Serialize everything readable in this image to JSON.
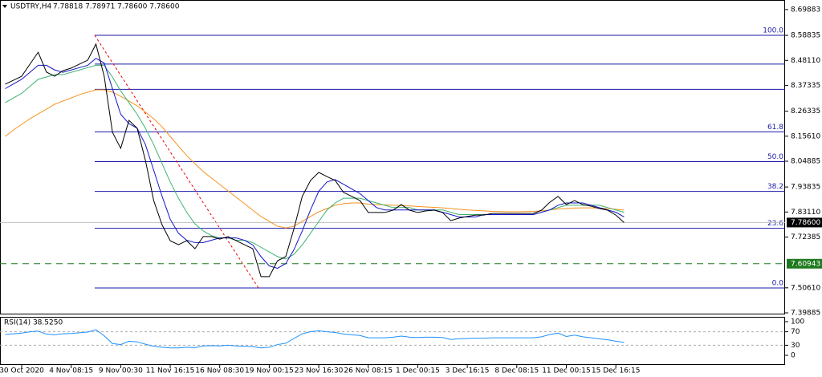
{
  "chart_data": [
    {
      "type": "line",
      "title": "USDTRY,H4",
      "ohlc": "7.78818 7.78971 7.78600 7.78600",
      "categories": [
        null,
        null,
        "30 Oct 2020",
        null,
        null,
        null,
        null,
        null,
        "4 Nov 08:15",
        null,
        null,
        null,
        null,
        null,
        "9 Nov 00:30",
        null,
        null,
        null,
        null,
        null,
        "11 Nov 16:15",
        null,
        null,
        null,
        null,
        null,
        "16 Nov 08:30",
        null,
        null,
        null,
        null,
        null,
        "19 Nov 00:15",
        null,
        null,
        null,
        null,
        null,
        "23 Nov 16:30",
        null,
        null,
        null,
        null,
        null,
        "26 Nov 08:15",
        null,
        null,
        null,
        null,
        null,
        "1 Dec 00:15",
        null,
        null,
        null,
        null,
        null,
        "3 Dec 16:15",
        null,
        null,
        null,
        null,
        null,
        "8 Dec 08:15",
        null,
        null,
        null,
        null,
        null,
        "11 Dec 00:15",
        null,
        null,
        null,
        null,
        null,
        "15 Dec 16:15",
        null
      ],
      "series": [
        {
          "color": "#000000",
          "values": [
            8.379,
            8.396,
            8.413,
            8.465,
            8.516,
            8.431,
            8.413,
            8.437,
            8.448,
            8.465,
            8.482,
            8.551,
            8.413,
            8.173,
            8.104,
            8.224,
            8.19,
            8.052,
            7.88,
            7.777,
            7.708,
            7.691,
            7.708,
            7.674,
            7.726,
            7.726,
            7.715,
            7.726,
            7.708,
            7.691,
            7.674,
            7.554,
            7.554,
            7.622,
            7.64,
            7.76,
            7.898,
            7.966,
            8.001,
            7.983,
            7.966,
            7.915,
            7.898,
            7.88,
            7.829,
            7.829,
            7.829,
            7.839,
            7.863,
            7.839,
            7.829,
            7.836,
            7.839,
            7.829,
            7.794,
            7.805,
            7.812,
            7.818,
            7.818,
            7.825,
            7.825,
            7.825,
            7.825,
            7.825,
            7.825,
            7.839,
            7.873,
            7.898,
            7.863,
            7.88,
            7.863,
            7.856,
            7.846,
            7.839,
            7.818,
            7.786
          ]
        },
        {
          "color": "#1515c8",
          "values": [
            8.36,
            8.38,
            8.4,
            8.43,
            8.46,
            8.46,
            8.44,
            8.43,
            8.44,
            8.45,
            8.46,
            8.49,
            8.47,
            8.36,
            8.25,
            8.21,
            8.19,
            8.12,
            8.01,
            7.9,
            7.8,
            7.74,
            7.71,
            7.7,
            7.7,
            7.71,
            7.72,
            7.72,
            7.72,
            7.71,
            7.69,
            7.64,
            7.6,
            7.59,
            7.61,
            7.67,
            7.75,
            7.84,
            7.92,
            7.96,
            7.97,
            7.95,
            7.93,
            7.91,
            7.88,
            7.85,
            7.84,
            7.84,
            7.84,
            7.84,
            7.84,
            7.84,
            7.84,
            7.83,
            7.82,
            7.81,
            7.81,
            7.81,
            7.82,
            7.82,
            7.82,
            7.82,
            7.82,
            7.82,
            7.82,
            7.83,
            7.84,
            7.86,
            7.87,
            7.87,
            7.87,
            7.86,
            7.85,
            7.84,
            7.83,
            7.81
          ]
        },
        {
          "color": "#3cb371",
          "values": [
            8.3,
            8.32,
            8.34,
            8.37,
            8.4,
            8.41,
            8.42,
            8.42,
            8.43,
            8.44,
            8.45,
            8.46,
            8.46,
            8.41,
            8.35,
            8.3,
            8.25,
            8.19,
            8.12,
            8.04,
            7.96,
            7.89,
            7.83,
            7.78,
            7.75,
            7.73,
            7.72,
            7.72,
            7.71,
            7.71,
            7.7,
            7.68,
            7.66,
            7.64,
            7.63,
            7.65,
            7.69,
            7.74,
            7.79,
            7.84,
            7.87,
            7.89,
            7.89,
            7.89,
            7.88,
            7.87,
            7.86,
            7.85,
            7.85,
            7.85,
            7.84,
            7.84,
            7.84,
            7.84,
            7.83,
            7.82,
            7.82,
            7.82,
            7.82,
            7.82,
            7.82,
            7.82,
            7.82,
            7.82,
            7.82,
            7.83,
            7.84,
            7.85,
            7.86,
            7.86,
            7.86,
            7.86,
            7.86,
            7.85,
            7.84,
            7.83
          ]
        },
        {
          "color": "#f7931e",
          "values": [
            8.155,
            8.183,
            8.207,
            8.231,
            8.252,
            8.272,
            8.293,
            8.307,
            8.32,
            8.334,
            8.345,
            8.355,
            8.355,
            8.345,
            8.327,
            8.307,
            8.286,
            8.259,
            8.231,
            8.197,
            8.155,
            8.114,
            8.073,
            8.038,
            8.004,
            7.977,
            7.949,
            7.922,
            7.894,
            7.867,
            7.839,
            7.812,
            7.791,
            7.77,
            7.763,
            7.77,
            7.791,
            7.812,
            7.832,
            7.846,
            7.86,
            7.867,
            7.87,
            7.87,
            7.865,
            7.863,
            7.862,
            7.86,
            7.859,
            7.857,
            7.855,
            7.853,
            7.851,
            7.849,
            7.846,
            7.843,
            7.84,
            7.838,
            7.836,
            7.834,
            7.833,
            7.832,
            7.832,
            7.833,
            7.834,
            7.836,
            7.84,
            7.844,
            7.846,
            7.848,
            7.849,
            7.849,
            7.848,
            7.846,
            7.843,
            7.839
          ]
        }
      ],
      "ylim": [
        7.392,
        8.74
      ],
      "yticks": [
        8.69883,
        8.58835,
        {
          "value": 8.4811,
          "label": "8.48110"
        },
        8.37335,
        8.26335,
        {
          "value": 8.1561,
          "label": "8.15610"
        },
        8.04885,
        7.93835,
        {
          "value": 7.8311,
          "label": "7.83110"
        },
        7.72385,
        {
          "value": 7.5061,
          "label": "7.50610"
        },
        7.39885
      ],
      "fib_color": "#1a1aa8",
      "fib_levels": [
        {
          "value": 8.5887,
          "label": "100.0"
        },
        {
          "value": 8.4653,
          "label": null
        },
        {
          "value": 8.357,
          "label": null
        },
        {
          "value": 8.1749,
          "label": "61.8"
        },
        {
          "value": 8.0471,
          "label": "50.0"
        },
        {
          "value": 7.9193,
          "label": "38.2"
        },
        {
          "value": 7.7611,
          "label": "23.6"
        },
        {
          "value": 7.5055,
          "label": "0.0"
        }
      ],
      "support": 7.60943,
      "support_color": "#1e7a1e",
      "last_price": {
        "value": 7.786,
        "label": "7.78600"
      }
    },
    {
      "type": "line",
      "title": "RSI(14) 38.5250",
      "color": "#1e90ff",
      "values": [
        62,
        64,
        66,
        70,
        72,
        63,
        61,
        64,
        65,
        67,
        69,
        76,
        58,
        35,
        32,
        42,
        40,
        33,
        27,
        24,
        22,
        22,
        24,
        23,
        28,
        29,
        28,
        30,
        28,
        27,
        26,
        22,
        24,
        32,
        36,
        50,
        64,
        70,
        73,
        70,
        68,
        63,
        61,
        59,
        52,
        52,
        52,
        54,
        57,
        54,
        53,
        54,
        54,
        53,
        47,
        49,
        50,
        51,
        51,
        52,
        52,
        52,
        52,
        52,
        52,
        55,
        62,
        66,
        56,
        60,
        55,
        52,
        49,
        46,
        42,
        38.525
      ],
      "ylim": [
        0,
        100
      ],
      "yticks": [
        100,
        70,
        30,
        0
      ],
      "levels": [
        70,
        30
      ]
    }
  ]
}
